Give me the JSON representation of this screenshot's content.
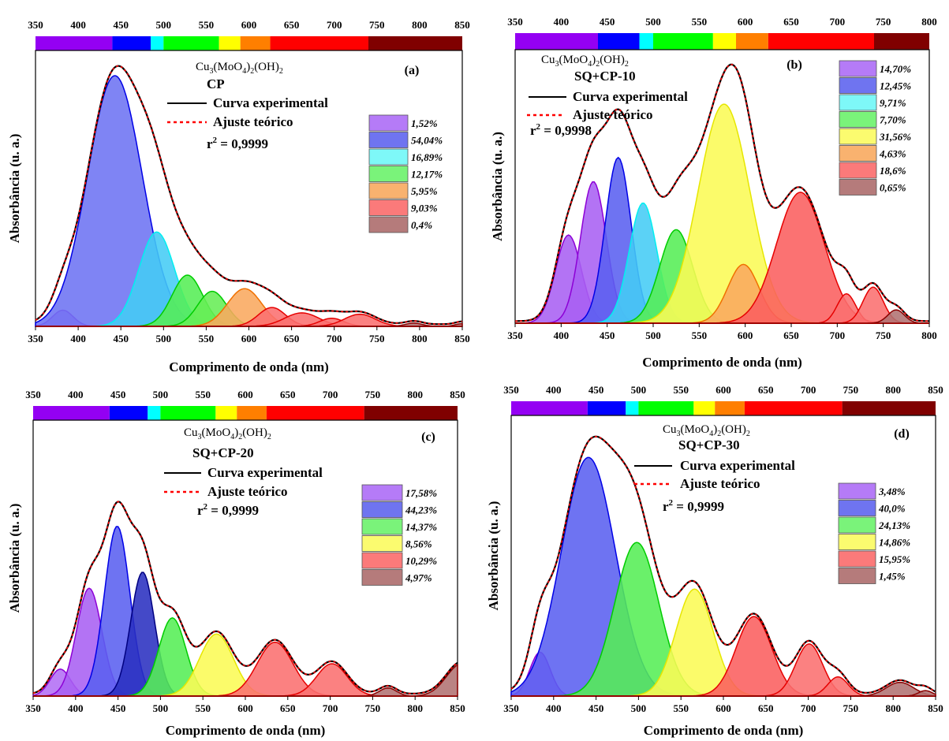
{
  "chart_data": [
    {
      "type": "area",
      "panel_label": "(a)",
      "compound": {
        "base": "Cu",
        "s1": "3",
        "mid": "(MoO",
        "s2": "4",
        "mid2": ")",
        "s3": "2",
        "end": "(OH)",
        "s4": "2"
      },
      "sample": "CP",
      "legend_line1": "Curva experimental",
      "legend_line2": "Ajuste teórico",
      "r2_label": "r",
      "r2_sup": "2",
      "r2_value": " = 0,9999",
      "xlabel": "Comprimento de onda (nm)",
      "ylabel": "Absorbância (u. a.)",
      "xlim": [
        350,
        850
      ],
      "xticks": [
        "350",
        "400",
        "450",
        "500",
        "550",
        "600",
        "650",
        "700",
        "750",
        "800",
        "850"
      ],
      "top_ticks": [
        "350",
        "400",
        "450",
        "500",
        "550",
        "600",
        "650",
        "700",
        "750",
        "800",
        "850"
      ],
      "percentages": [
        "1,52%",
        "54,04%",
        "16,89%",
        "12,17%",
        "5,95%",
        "9,03%",
        "0,4%"
      ],
      "legend_colors": [
        "#b57bf7",
        "#6f74f0",
        "#7ef8f8",
        "#7af37a",
        "#f9b26f",
        "#fb7a7a",
        "#b57b7b"
      ],
      "components": [
        {
          "center": 382,
          "height": 0.06,
          "width": 12,
          "fill": "#b36ef5",
          "stroke": "#8d00d6"
        },
        {
          "center": 443,
          "height": 0.93,
          "width": 32,
          "fill": "#6d73f3",
          "stroke": "#0000e6"
        },
        {
          "center": 492,
          "height": 0.35,
          "width": 21,
          "fill": "#44ccf5",
          "stroke": "#00f0f0"
        },
        {
          "center": 528,
          "height": 0.19,
          "width": 18,
          "fill": "#55ee55",
          "stroke": "#00cc00"
        },
        {
          "center": 557,
          "height": 0.13,
          "width": 17,
          "fill": "#66ee55",
          "stroke": "#00cc00"
        },
        {
          "center": 595,
          "height": 0.14,
          "width": 20,
          "fill": "#f9a85f",
          "stroke": "#f07000"
        },
        {
          "center": 627,
          "height": 0.07,
          "width": 16,
          "fill": "#fb6f6f",
          "stroke": "#e60000"
        },
        {
          "center": 662,
          "height": 0.05,
          "width": 20,
          "fill": "#fb6f6f",
          "stroke": "#e60000"
        },
        {
          "center": 697,
          "height": 0.03,
          "width": 14,
          "fill": "#fb6f6f",
          "stroke": "#e60000"
        },
        {
          "center": 730,
          "height": 0.045,
          "width": 18,
          "fill": "#fb6f6f",
          "stroke": "#e60000"
        },
        {
          "center": 793,
          "height": 0.012,
          "width": 10,
          "fill": "#b07272",
          "stroke": "#8b0000"
        },
        {
          "center": 850,
          "height": 0.01,
          "width": 8,
          "fill": "#b07272",
          "stroke": "#8b0000"
        }
      ]
    },
    {
      "type": "area",
      "panel_label": "(b)",
      "compound": {
        "base": "Cu",
        "s1": "3",
        "mid": "(MoO",
        "s2": "4",
        "mid2": ")",
        "s3": "2",
        "end": "(OH)",
        "s4": "2"
      },
      "sample": "SQ+CP-10",
      "legend_line1": "Curva experimental",
      "legend_line2": "Ajuste teórico",
      "r2_label": "r",
      "r2_sup": "2",
      "r2_value": " = 0,9998",
      "xlabel": "Comprimento de onda (nm)",
      "ylabel": "Absorbância (u. a.)",
      "xlim": [
        350,
        800
      ],
      "xticks": [
        "350",
        "400",
        "450",
        "500",
        "550",
        "600",
        "650",
        "700",
        "750",
        "800"
      ],
      "top_ticks": [
        "350",
        "400",
        "450",
        "500",
        "550",
        "600",
        "650",
        "700",
        "750",
        "800"
      ],
      "percentages": [
        "14,70%",
        "12,45%",
        "9,71%",
        "7,70%",
        "31,56%",
        "4,63%",
        "18,6%",
        "0,65%"
      ],
      "legend_colors": [
        "#b57bf7",
        "#6f74f0",
        "#7ef8f8",
        "#7af37a",
        "#fbfb6f",
        "#f9b26f",
        "#fb7a7a",
        "#b57b7b"
      ],
      "components": [
        {
          "center": 408,
          "height": 0.33,
          "width": 14,
          "fill": "#a860f2",
          "stroke": "#8d00d6"
        },
        {
          "center": 435,
          "height": 0.53,
          "width": 14,
          "fill": "#a860f2",
          "stroke": "#8d00d6"
        },
        {
          "center": 462,
          "height": 0.62,
          "width": 14,
          "fill": "#5a60f0",
          "stroke": "#0000e6"
        },
        {
          "center": 489,
          "height": 0.45,
          "width": 15,
          "fill": "#44ccf5",
          "stroke": "#00f0f0"
        },
        {
          "center": 525,
          "height": 0.35,
          "width": 18,
          "fill": "#55ee55",
          "stroke": "#00cc00"
        },
        {
          "center": 577,
          "height": 0.82,
          "width": 28,
          "fill": "#fbfb55",
          "stroke": "#e6e600"
        },
        {
          "center": 598,
          "height": 0.22,
          "width": 17,
          "fill": "#f9a85f",
          "stroke": "#f07000"
        },
        {
          "center": 660,
          "height": 0.49,
          "width": 26,
          "fill": "#fb5f5f",
          "stroke": "#e60000"
        },
        {
          "center": 710,
          "height": 0.11,
          "width": 10,
          "fill": "#fb6f6f",
          "stroke": "#e60000"
        },
        {
          "center": 739,
          "height": 0.135,
          "width": 11,
          "fill": "#fb6f6f",
          "stroke": "#e60000"
        },
        {
          "center": 764,
          "height": 0.05,
          "width": 9,
          "fill": "#b07272",
          "stroke": "#8b0000"
        }
      ]
    },
    {
      "type": "area",
      "panel_label": "(c)",
      "compound": {
        "base": "Cu",
        "s1": "3",
        "mid": "(MoO",
        "s2": "4",
        "mid2": ")",
        "s3": "2",
        "end": "(OH)",
        "s4": "2"
      },
      "sample": "SQ+CP-20",
      "legend_line1": "Curva experimental",
      "legend_line2": "Ajuste teórico",
      "r2_label": "r",
      "r2_sup": "2",
      "r2_value": " = 0,9999",
      "xlabel": "Comprimento de onda (nm)",
      "ylabel": "Absorbância (u. a.)",
      "xlim": [
        350,
        850
      ],
      "xticks": [
        "350",
        "400",
        "450",
        "500",
        "550",
        "600",
        "650",
        "700",
        "750",
        "800",
        "850"
      ],
      "top_ticks": [
        "350",
        "400",
        "450",
        "500",
        "550",
        "600",
        "650",
        "700",
        "750",
        "800",
        "850"
      ],
      "percentages": [
        "17,58%",
        "44,23%",
        "14,37%",
        "8,56%",
        "10,29%",
        "4,97%"
      ],
      "legend_colors": [
        "#b57bf7",
        "#6f74f0",
        "#7af37a",
        "#fbfb6f",
        "#fb7a7a",
        "#b57b7b"
      ],
      "components": [
        {
          "center": 382,
          "height": 0.1,
          "width": 12,
          "fill": "#b36ef5",
          "stroke": "#8d00d6"
        },
        {
          "center": 416,
          "height": 0.4,
          "width": 15,
          "fill": "#a860f2",
          "stroke": "#8d00d6"
        },
        {
          "center": 449,
          "height": 0.63,
          "width": 15,
          "fill": "#5a60f0",
          "stroke": "#0000e6"
        },
        {
          "center": 479,
          "height": 0.46,
          "width": 14,
          "fill": "#2a30c0",
          "stroke": "#000080"
        },
        {
          "center": 514,
          "height": 0.29,
          "width": 16,
          "fill": "#55ee55",
          "stroke": "#00cc00"
        },
        {
          "center": 566,
          "height": 0.23,
          "width": 20,
          "fill": "#fbfb55",
          "stroke": "#e6e600"
        },
        {
          "center": 635,
          "height": 0.2,
          "width": 21,
          "fill": "#fb6f6f",
          "stroke": "#e60000"
        },
        {
          "center": 702,
          "height": 0.12,
          "width": 18,
          "fill": "#fb6f6f",
          "stroke": "#e60000"
        },
        {
          "center": 768,
          "height": 0.03,
          "width": 10,
          "fill": "#b07272",
          "stroke": "#8b0000"
        },
        {
          "center": 855,
          "height": 0.12,
          "width": 18,
          "fill": "#b07272",
          "stroke": "#8b0000"
        }
      ]
    },
    {
      "type": "area",
      "panel_label": "(d)",
      "compound": {
        "base": "Cu",
        "s1": "3",
        "mid": "(MoO",
        "s2": "4",
        "mid2": ")",
        "s3": "2",
        "end": "(OH)",
        "s4": "2"
      },
      "sample": "SQ+CP-30",
      "legend_line1": "Curva experimental",
      "legend_line2": "Ajuste teórico",
      "r2_label": "r",
      "r2_sup": "2",
      "r2_value": " = 0,9999",
      "xlabel": "Comprimento de onda (nm)",
      "ylabel": "Absorbância (u. a.)",
      "xlim": [
        350,
        850
      ],
      "xticks": [
        "350",
        "400",
        "450",
        "500",
        "550",
        "600",
        "650",
        "700",
        "750",
        "800",
        "850"
      ],
      "top_ticks": [
        "350",
        "400",
        "450",
        "500",
        "550",
        "600",
        "650",
        "700",
        "750",
        "800",
        "850"
      ],
      "percentages": [
        "3,48%",
        "40,0%",
        "24,13%",
        "14,86%",
        "15,95%",
        "1,45%"
      ],
      "legend_colors": [
        "#b57bf7",
        "#6f74f0",
        "#7af37a",
        "#fbfb6f",
        "#fb7a7a",
        "#b57b7b"
      ],
      "components": [
        {
          "center": 384,
          "height": 0.16,
          "width": 12,
          "fill": "#a860f2",
          "stroke": "#8d00d6"
        },
        {
          "center": 441,
          "height": 0.87,
          "width": 32,
          "fill": "#5a60f0",
          "stroke": "#0000e6"
        },
        {
          "center": 498,
          "height": 0.56,
          "width": 26,
          "fill": "#55ee55",
          "stroke": "#00cc00"
        },
        {
          "center": 566,
          "height": 0.39,
          "width": 22,
          "fill": "#fbfb55",
          "stroke": "#e6e600"
        },
        {
          "center": 636,
          "height": 0.29,
          "width": 21,
          "fill": "#fb5f5f",
          "stroke": "#e60000"
        },
        {
          "center": 701,
          "height": 0.19,
          "width": 16,
          "fill": "#fb6f6f",
          "stroke": "#e60000"
        },
        {
          "center": 735,
          "height": 0.07,
          "width": 12,
          "fill": "#fb6f6f",
          "stroke": "#e60000"
        },
        {
          "center": 808,
          "height": 0.05,
          "width": 16,
          "fill": "#b07272",
          "stroke": "#8b0000"
        },
        {
          "center": 838,
          "height": 0.02,
          "width": 8,
          "fill": "#b07272",
          "stroke": "#8b0000"
        }
      ]
    }
  ],
  "spectrum_colors": {
    "violet": "#9400f3",
    "blue": "#0000ff",
    "cyan": "#00ffff",
    "green": "#00ff00",
    "yellow": "#ffff00",
    "orange": "#ff7f00",
    "red": "#ff0000",
    "darkred": "#800000"
  }
}
